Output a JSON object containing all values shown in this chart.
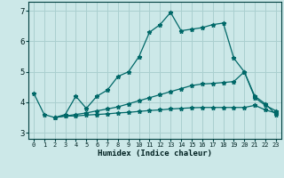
{
  "xlabel": "Humidex (Indice chaleur)",
  "xlim": [
    -0.5,
    23.5
  ],
  "ylim": [
    2.8,
    7.3
  ],
  "yticks": [
    3,
    4,
    5,
    6,
    7
  ],
  "xticks": [
    0,
    1,
    2,
    3,
    4,
    5,
    6,
    7,
    8,
    9,
    10,
    11,
    12,
    13,
    14,
    15,
    16,
    17,
    18,
    19,
    20,
    21,
    22,
    23
  ],
  "bg_color": "#cce8e8",
  "grid_color": "#aacfcf",
  "line_color": "#006868",
  "lines": [
    {
      "x": [
        0,
        1,
        2,
        3,
        4,
        5,
        6,
        7,
        8,
        9,
        10,
        11,
        12,
        13,
        14,
        15,
        16,
        17,
        18,
        19,
        20,
        21,
        22,
        23
      ],
      "y": [
        4.3,
        3.6,
        3.5,
        3.6,
        4.2,
        3.8,
        4.2,
        4.4,
        4.85,
        5.0,
        5.5,
        6.3,
        6.55,
        6.95,
        6.35,
        6.4,
        6.45,
        6.55,
        6.6,
        5.45,
        5.0,
        4.2,
        3.95,
        3.6
      ]
    },
    {
      "x": [
        2,
        3,
        4,
        5,
        6,
        7,
        8,
        9,
        10,
        11,
        12,
        13,
        14,
        15,
        16,
        17,
        18,
        19,
        20,
        21,
        22,
        23
      ],
      "y": [
        3.5,
        3.55,
        3.55,
        3.58,
        3.6,
        3.62,
        3.65,
        3.67,
        3.7,
        3.73,
        3.75,
        3.78,
        3.8,
        3.82,
        3.83,
        3.83,
        3.83,
        3.83,
        3.83,
        3.9,
        3.75,
        3.65
      ]
    },
    {
      "x": [
        2,
        3,
        4,
        5,
        6,
        7,
        8,
        9,
        10,
        11,
        12,
        13,
        14,
        15,
        16,
        17,
        18,
        19,
        20,
        21,
        22,
        23
      ],
      "y": [
        3.5,
        3.55,
        3.6,
        3.65,
        3.72,
        3.78,
        3.85,
        3.95,
        4.05,
        4.15,
        4.25,
        4.35,
        4.45,
        4.55,
        4.6,
        4.62,
        4.65,
        4.68,
        5.0,
        4.15,
        3.9,
        3.72
      ]
    }
  ]
}
